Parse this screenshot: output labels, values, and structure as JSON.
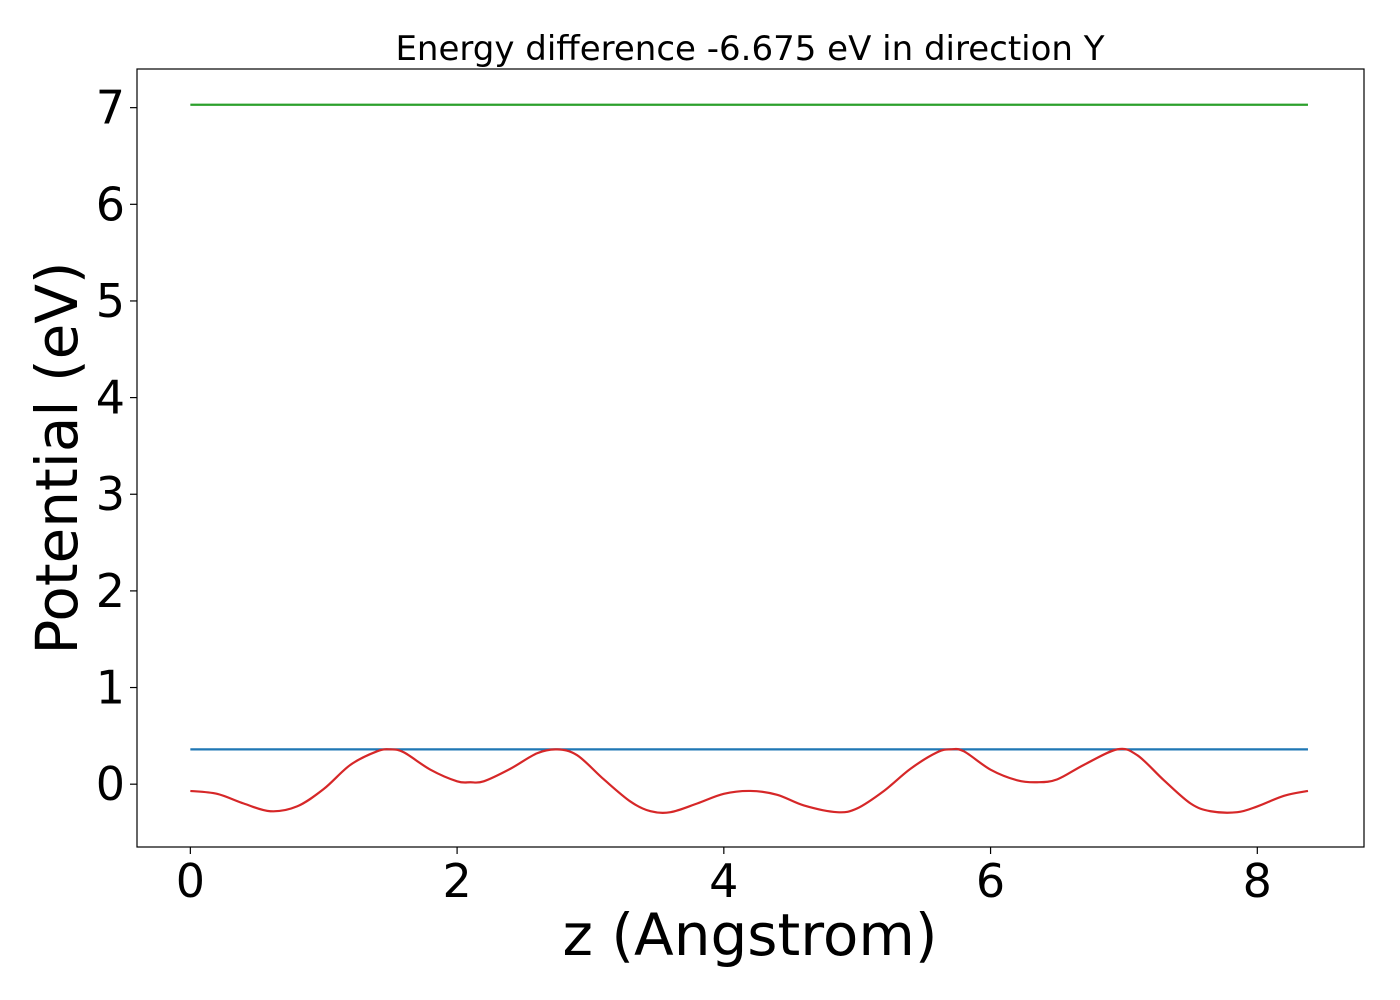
{
  "chart_data": {
    "type": "line",
    "title": "Energy difference -6.675 eV in direction Y",
    "xlabel": "z (Angstrom)",
    "ylabel": "Potential (eV)",
    "xlim": [
      -0.4,
      8.8
    ],
    "ylim": [
      -0.65,
      7.4
    ],
    "xticks": [
      0,
      2,
      4,
      6,
      8
    ],
    "yticks": [
      0,
      1,
      2,
      3,
      4,
      5,
      6,
      7
    ],
    "grid": false,
    "legend": "none",
    "series": [
      {
        "color": "#d62728",
        "x": [
          0,
          0.2,
          0.4,
          0.6,
          0.8,
          1.0,
          1.2,
          1.4,
          1.5,
          1.6,
          1.8,
          2.0,
          2.1,
          2.2,
          2.4,
          2.6,
          2.75,
          2.9,
          3.1,
          3.3,
          3.45,
          3.6,
          3.8,
          4.0,
          4.2,
          4.4,
          4.6,
          4.85,
          5.0,
          5.2,
          5.4,
          5.6,
          5.7,
          5.8,
          6.0,
          6.2,
          6.35,
          6.5,
          6.7,
          6.95,
          7.1,
          7.3,
          7.5,
          7.65,
          7.85,
          8.0,
          8.2,
          8.38
        ],
        "y": [
          -0.07,
          -0.1,
          -0.2,
          -0.28,
          -0.23,
          -0.05,
          0.2,
          0.34,
          0.36,
          0.33,
          0.15,
          0.03,
          0.02,
          0.03,
          0.16,
          0.32,
          0.36,
          0.3,
          0.05,
          -0.18,
          -0.28,
          -0.29,
          -0.2,
          -0.1,
          -0.07,
          -0.11,
          -0.22,
          -0.29,
          -0.25,
          -0.07,
          0.16,
          0.33,
          0.36,
          0.34,
          0.15,
          0.04,
          0.02,
          0.05,
          0.2,
          0.36,
          0.3,
          0.04,
          -0.2,
          -0.28,
          -0.29,
          -0.23,
          -0.12,
          -0.07
        ]
      },
      {
        "color": "#1f77b4",
        "x": [
          0,
          8.38
        ],
        "y": [
          0.36,
          0.36
        ]
      },
      {
        "color": "#2ca02c",
        "x": [
          0,
          8.38
        ],
        "y": [
          7.03,
          7.03
        ]
      }
    ]
  }
}
